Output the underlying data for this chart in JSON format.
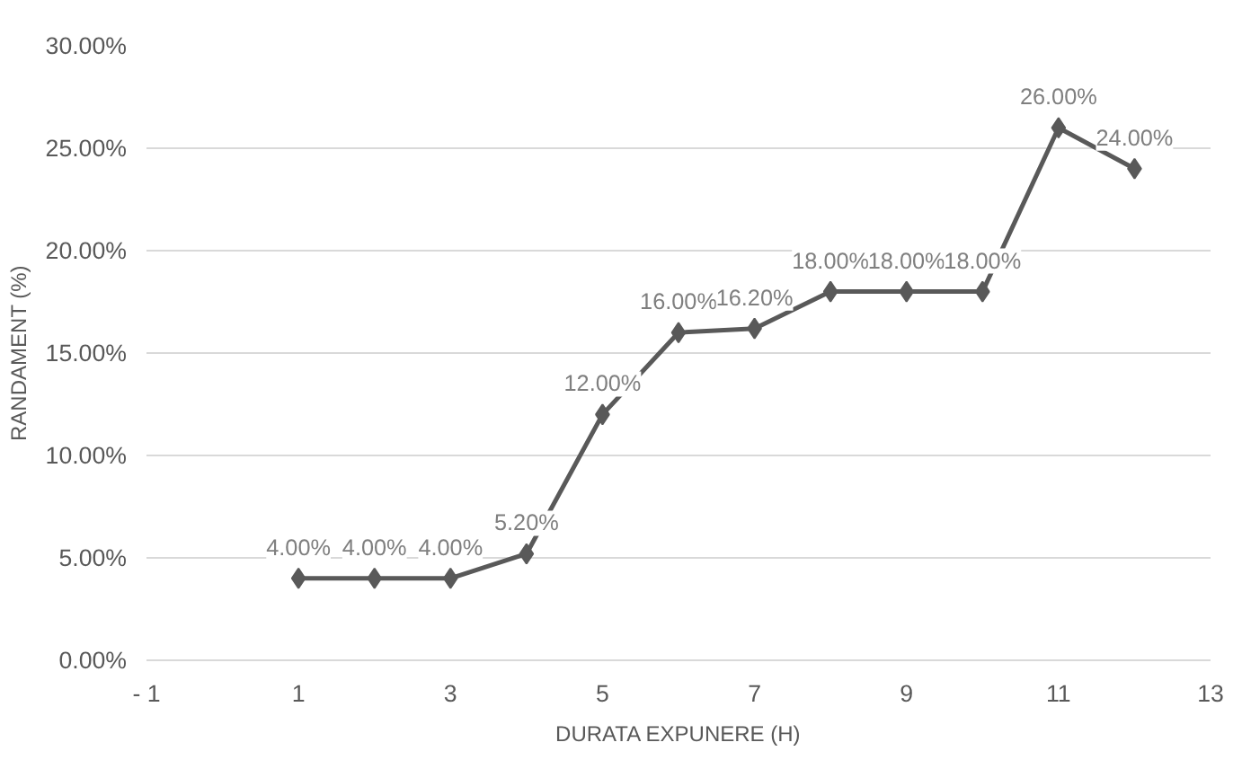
{
  "chart_data": {
    "type": "line",
    "xlabel": "DURATA EXPUNERE (H)",
    "ylabel": "RANDAMENT (%)",
    "x": [
      1,
      2,
      3,
      4,
      5,
      6,
      7,
      8,
      9,
      10,
      11,
      12
    ],
    "series": [
      {
        "color": "#595959",
        "values": [
          4,
          4,
          4,
          5.2,
          12,
          16,
          16.2,
          18,
          18,
          18,
          26,
          24
        ],
        "value_labels": [
          "4.00%",
          "4.00%",
          "4.00%",
          "5.20%",
          "12.00%",
          "16.00%",
          "16.20%",
          "18.00%",
          "18.00%",
          "18.00%",
          "26.00%",
          "24.00%"
        ]
      }
    ],
    "xlim": [
      -1,
      13
    ],
    "xticks": [
      {
        "value": -1,
        "label": "- 1"
      },
      1,
      3,
      5,
      7,
      9,
      11,
      13
    ],
    "ylim": [
      0,
      30
    ],
    "yticks": [
      {
        "value": 0,
        "label": "0.00%"
      },
      {
        "value": 5,
        "label": "5.00%"
      },
      {
        "value": 10,
        "label": "10.00%"
      },
      {
        "value": 15,
        "label": "15.00%"
      },
      {
        "value": 20,
        "label": "20.00%"
      },
      {
        "value": 25,
        "label": "25.00%"
      },
      {
        "value": 30,
        "label": "30.00%"
      }
    ],
    "grid": "y",
    "marker": "diamond",
    "line_style": "solid"
  }
}
